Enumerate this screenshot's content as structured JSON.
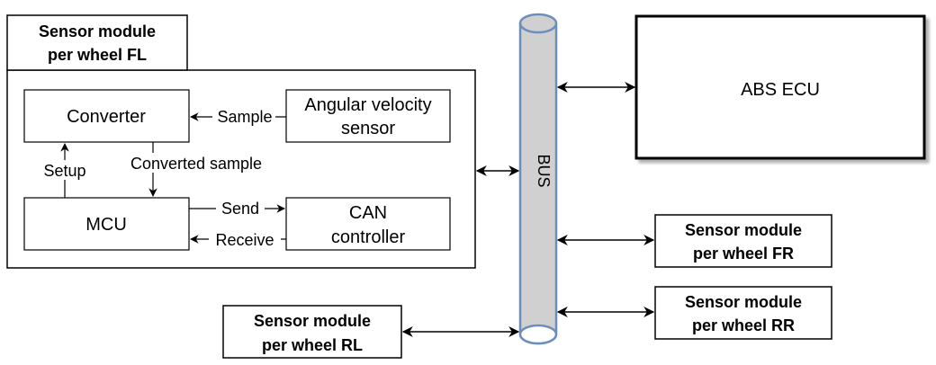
{
  "module_fl": {
    "title_line1": "Sensor module",
    "title_line2": "per wheel FL",
    "converter": "Converter",
    "angular_sensor_line1": "Angular velocity",
    "angular_sensor_line2": "sensor",
    "mcu": "MCU",
    "can_line1": "CAN",
    "can_line2": "controller",
    "sample_label": "Sample",
    "setup_label": "Setup",
    "converted_sample_label": "Converted sample",
    "send_label": "Send",
    "receive_label": "Receive"
  },
  "bus": {
    "label": "BUS",
    "fill_color": "#d0d0d0",
    "stroke_color": "#6c8ebf"
  },
  "abs_ecu": {
    "label": "ABS ECU"
  },
  "module_fr": {
    "line1": "Sensor module",
    "line2": "per wheel FR"
  },
  "module_rr": {
    "line1": "Sensor module",
    "line2": "per wheel RR"
  },
  "module_rl": {
    "line1": "Sensor module",
    "line2": "per wheel RL"
  }
}
